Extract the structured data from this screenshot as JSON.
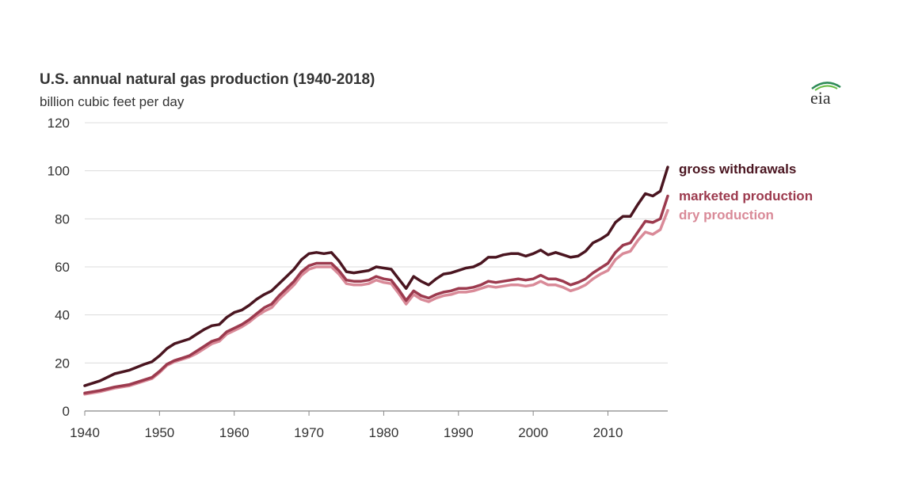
{
  "title": "U.S. annual natural gas production (1940-2018)",
  "subtitle": "billion cubic feet per day",
  "logo_text": "eia",
  "chart_data": {
    "type": "line",
    "title": "U.S. annual natural gas production (1940-2018)",
    "subtitle": "billion cubic feet per day",
    "xlabel": "",
    "ylabel": "",
    "xlim": [
      1940,
      2018
    ],
    "ylim": [
      0,
      120
    ],
    "x_ticks": [
      1940,
      1950,
      1960,
      1970,
      1980,
      1990,
      2000,
      2010
    ],
    "y_ticks": [
      0,
      20,
      40,
      60,
      80,
      100,
      120
    ],
    "grid": "horizontal",
    "legend": "direct labels at right end of lines",
    "series": [
      {
        "name": "gross withdrawals",
        "color": "#4a1520",
        "points": [
          [
            1940,
            10.5
          ],
          [
            1942,
            12.5
          ],
          [
            1944,
            15.5
          ],
          [
            1946,
            17.0
          ],
          [
            1948,
            19.5
          ],
          [
            1949,
            20.5
          ],
          [
            1950,
            23.0
          ],
          [
            1951,
            26.0
          ],
          [
            1952,
            28.0
          ],
          [
            1953,
            29.0
          ],
          [
            1954,
            30.0
          ],
          [
            1955,
            32.0
          ],
          [
            1956,
            34.0
          ],
          [
            1957,
            35.5
          ],
          [
            1958,
            36.0
          ],
          [
            1959,
            39.0
          ],
          [
            1960,
            41.0
          ],
          [
            1961,
            42.0
          ],
          [
            1962,
            44.0
          ],
          [
            1963,
            46.5
          ],
          [
            1964,
            48.5
          ],
          [
            1965,
            50.0
          ],
          [
            1966,
            53.0
          ],
          [
            1967,
            56.0
          ],
          [
            1968,
            59.0
          ],
          [
            1969,
            63.0
          ],
          [
            1970,
            65.5
          ],
          [
            1971,
            66.0
          ],
          [
            1972,
            65.5
          ],
          [
            1973,
            66.0
          ],
          [
            1974,
            62.5
          ],
          [
            1975,
            58.0
          ],
          [
            1976,
            57.5
          ],
          [
            1977,
            58.0
          ],
          [
            1978,
            58.5
          ],
          [
            1979,
            60.0
          ],
          [
            1980,
            59.5
          ],
          [
            1981,
            59.0
          ],
          [
            1982,
            55.0
          ],
          [
            1983,
            51.0
          ],
          [
            1984,
            56.0
          ],
          [
            1985,
            54.0
          ],
          [
            1986,
            52.5
          ],
          [
            1987,
            55.0
          ],
          [
            1988,
            57.0
          ],
          [
            1989,
            57.5
          ],
          [
            1990,
            58.5
          ],
          [
            1991,
            59.5
          ],
          [
            1992,
            60.0
          ],
          [
            1993,
            61.5
          ],
          [
            1994,
            64.0
          ],
          [
            1995,
            64.0
          ],
          [
            1996,
            65.0
          ],
          [
            1997,
            65.5
          ],
          [
            1998,
            65.5
          ],
          [
            1999,
            64.5
          ],
          [
            2000,
            65.5
          ],
          [
            2001,
            67.0
          ],
          [
            2002,
            65.0
          ],
          [
            2003,
            66.0
          ],
          [
            2004,
            65.0
          ],
          [
            2005,
            64.0
          ],
          [
            2006,
            64.5
          ],
          [
            2007,
            66.5
          ],
          [
            2008,
            70.0
          ],
          [
            2009,
            71.5
          ],
          [
            2010,
            73.5
          ],
          [
            2011,
            78.5
          ],
          [
            2012,
            81.0
          ],
          [
            2013,
            81.0
          ],
          [
            2014,
            86.0
          ],
          [
            2015,
            90.5
          ],
          [
            2016,
            89.5
          ],
          [
            2017,
            91.5
          ],
          [
            2018,
            101.5
          ]
        ]
      },
      {
        "name": "marketed production",
        "color": "#9c3a4e",
        "points": [
          [
            1940,
            7.5
          ],
          [
            1942,
            8.5
          ],
          [
            1944,
            10.0
          ],
          [
            1946,
            11.0
          ],
          [
            1948,
            13.0
          ],
          [
            1949,
            14.0
          ],
          [
            1950,
            16.5
          ],
          [
            1951,
            19.5
          ],
          [
            1952,
            21.0
          ],
          [
            1953,
            22.0
          ],
          [
            1954,
            23.0
          ],
          [
            1955,
            25.0
          ],
          [
            1956,
            27.0
          ],
          [
            1957,
            29.0
          ],
          [
            1958,
            30.0
          ],
          [
            1959,
            33.0
          ],
          [
            1960,
            34.5
          ],
          [
            1961,
            36.0
          ],
          [
            1962,
            38.0
          ],
          [
            1963,
            40.5
          ],
          [
            1964,
            43.0
          ],
          [
            1965,
            44.5
          ],
          [
            1966,
            48.0
          ],
          [
            1967,
            51.0
          ],
          [
            1968,
            54.0
          ],
          [
            1969,
            58.0
          ],
          [
            1970,
            60.5
          ],
          [
            1971,
            61.5
          ],
          [
            1972,
            61.5
          ],
          [
            1973,
            61.5
          ],
          [
            1974,
            58.5
          ],
          [
            1975,
            54.5
          ],
          [
            1976,
            54.0
          ],
          [
            1977,
            54.0
          ],
          [
            1978,
            54.5
          ],
          [
            1979,
            56.0
          ],
          [
            1980,
            55.0
          ],
          [
            1981,
            54.5
          ],
          [
            1982,
            50.5
          ],
          [
            1983,
            46.0
          ],
          [
            1984,
            50.0
          ],
          [
            1985,
            48.0
          ],
          [
            1986,
            47.0
          ],
          [
            1987,
            48.5
          ],
          [
            1988,
            49.5
          ],
          [
            1989,
            50.0
          ],
          [
            1990,
            51.0
          ],
          [
            1991,
            51.0
          ],
          [
            1992,
            51.5
          ],
          [
            1993,
            52.5
          ],
          [
            1994,
            54.0
          ],
          [
            1995,
            53.5
          ],
          [
            1996,
            54.0
          ],
          [
            1997,
            54.5
          ],
          [
            1998,
            55.0
          ],
          [
            1999,
            54.5
          ],
          [
            2000,
            55.0
          ],
          [
            2001,
            56.5
          ],
          [
            2002,
            55.0
          ],
          [
            2003,
            55.0
          ],
          [
            2004,
            54.0
          ],
          [
            2005,
            52.5
          ],
          [
            2006,
            53.5
          ],
          [
            2007,
            55.0
          ],
          [
            2008,
            57.5
          ],
          [
            2009,
            59.5
          ],
          [
            2010,
            61.5
          ],
          [
            2011,
            66.0
          ],
          [
            2012,
            69.0
          ],
          [
            2013,
            70.0
          ],
          [
            2014,
            74.5
          ],
          [
            2015,
            79.0
          ],
          [
            2016,
            78.5
          ],
          [
            2017,
            80.0
          ],
          [
            2018,
            89.5
          ]
        ]
      },
      {
        "name": "dry production",
        "color": "#d98a98",
        "points": [
          [
            1940,
            7.0
          ],
          [
            1942,
            8.0
          ],
          [
            1944,
            9.5
          ],
          [
            1946,
            10.5
          ],
          [
            1948,
            12.5
          ],
          [
            1949,
            13.5
          ],
          [
            1950,
            16.0
          ],
          [
            1951,
            19.0
          ],
          [
            1952,
            20.5
          ],
          [
            1953,
            21.5
          ],
          [
            1954,
            22.5
          ],
          [
            1955,
            24.0
          ],
          [
            1956,
            26.0
          ],
          [
            1957,
            28.0
          ],
          [
            1958,
            29.0
          ],
          [
            1959,
            32.0
          ],
          [
            1960,
            33.5
          ],
          [
            1961,
            35.0
          ],
          [
            1962,
            37.0
          ],
          [
            1963,
            39.5
          ],
          [
            1964,
            41.5
          ],
          [
            1965,
            43.0
          ],
          [
            1966,
            46.5
          ],
          [
            1967,
            49.5
          ],
          [
            1968,
            52.5
          ],
          [
            1969,
            56.5
          ],
          [
            1970,
            59.0
          ],
          [
            1971,
            60.0
          ],
          [
            1972,
            60.0
          ],
          [
            1973,
            60.0
          ],
          [
            1974,
            57.0
          ],
          [
            1975,
            53.0
          ],
          [
            1976,
            52.5
          ],
          [
            1977,
            52.5
          ],
          [
            1978,
            53.0
          ],
          [
            1979,
            54.5
          ],
          [
            1980,
            53.5
          ],
          [
            1981,
            53.0
          ],
          [
            1982,
            49.0
          ],
          [
            1983,
            44.5
          ],
          [
            1984,
            48.5
          ],
          [
            1985,
            46.5
          ],
          [
            1986,
            45.5
          ],
          [
            1987,
            47.0
          ],
          [
            1988,
            48.0
          ],
          [
            1989,
            48.5
          ],
          [
            1990,
            49.5
          ],
          [
            1991,
            49.5
          ],
          [
            1992,
            50.0
          ],
          [
            1993,
            51.0
          ],
          [
            1994,
            52.0
          ],
          [
            1995,
            51.5
          ],
          [
            1996,
            52.0
          ],
          [
            1997,
            52.5
          ],
          [
            1998,
            52.5
          ],
          [
            1999,
            52.0
          ],
          [
            2000,
            52.5
          ],
          [
            2001,
            54.0
          ],
          [
            2002,
            52.5
          ],
          [
            2003,
            52.5
          ],
          [
            2004,
            51.5
          ],
          [
            2005,
            50.0
          ],
          [
            2006,
            51.0
          ],
          [
            2007,
            52.5
          ],
          [
            2008,
            55.0
          ],
          [
            2009,
            57.0
          ],
          [
            2010,
            58.5
          ],
          [
            2011,
            63.0
          ],
          [
            2012,
            65.5
          ],
          [
            2013,
            66.5
          ],
          [
            2014,
            71.0
          ],
          [
            2015,
            74.5
          ],
          [
            2016,
            73.5
          ],
          [
            2017,
            75.5
          ],
          [
            2018,
            83.5
          ]
        ]
      }
    ]
  }
}
